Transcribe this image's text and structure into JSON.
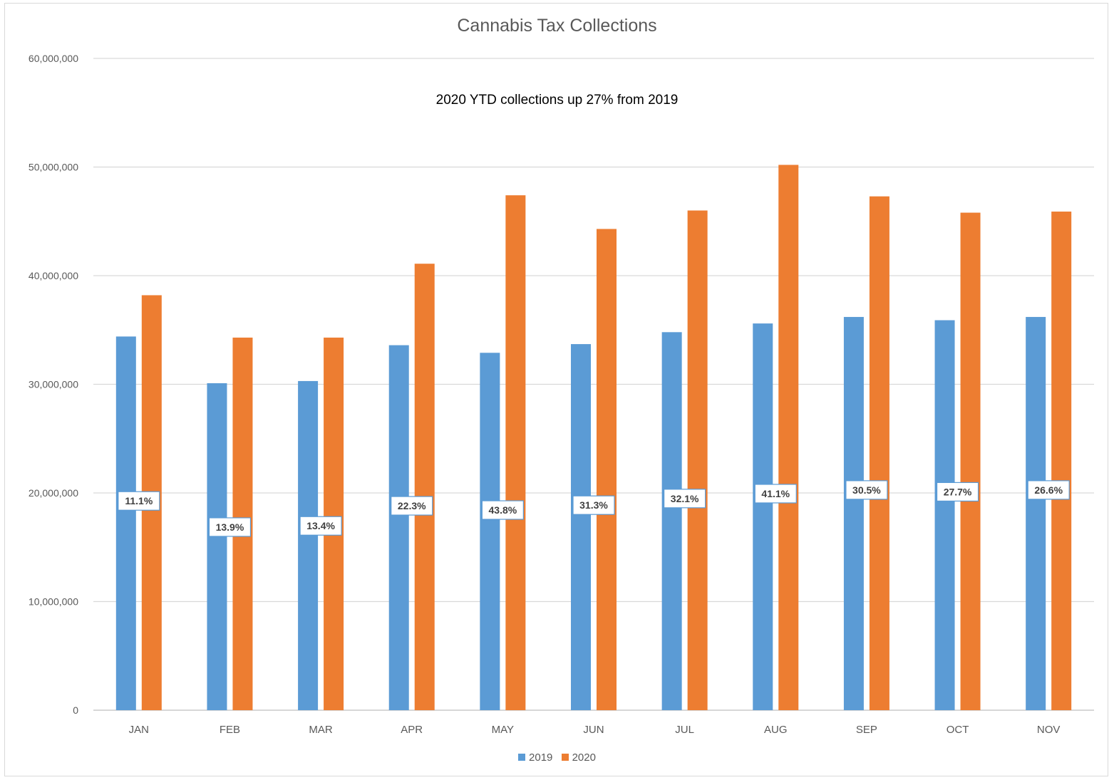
{
  "chart_data": {
    "type": "bar",
    "title": "Cannabis Tax Collections",
    "subtitle": "2020 YTD collections up 27% from 2019",
    "categories": [
      "JAN",
      "FEB",
      "MAR",
      "APR",
      "MAY",
      "JUN",
      "JUL",
      "AUG",
      "SEP",
      "OCT",
      "NOV"
    ],
    "series": [
      {
        "name": "2019",
        "color": "#5b9bd5",
        "values": [
          34400000,
          30100000,
          30300000,
          33600000,
          32900000,
          33700000,
          34800000,
          35600000,
          36200000,
          35900000,
          36200000
        ]
      },
      {
        "name": "2020",
        "color": "#ed7d31",
        "values": [
          38200000,
          34300000,
          34300000,
          41100000,
          47400000,
          44300000,
          46000000,
          50200000,
          47300000,
          45800000,
          45900000
        ]
      }
    ],
    "data_labels": [
      "11.1%",
      "13.9%",
      "13.4%",
      "22.3%",
      "43.8%",
      "31.3%",
      "32.1%",
      "41.1%",
      "30.5%",
      "27.7%",
      "26.6%"
    ],
    "ylim": [
      0,
      60000000
    ],
    "yticks": [
      0,
      10000000,
      20000000,
      30000000,
      40000000,
      50000000,
      60000000
    ],
    "ytick_labels": [
      "0",
      "10,000,000",
      "20,000,000",
      "30,000,000",
      "40,000,000",
      "50,000,000",
      "60,000,000"
    ],
    "grid": true,
    "legend_position": "bottom",
    "xlabel": "",
    "ylabel": ""
  }
}
